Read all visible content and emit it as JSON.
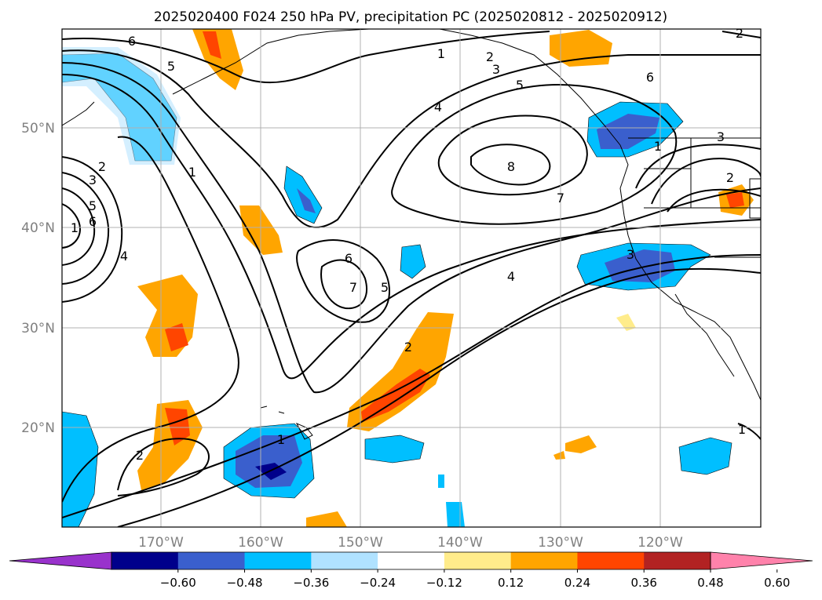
{
  "title": "2025020400 F024 250 hPa PV, precipitation PC (2025020812 - 2025020912)",
  "map": {
    "lon_labels": [
      "170°W",
      "160°W",
      "150°W",
      "140°W",
      "130°W",
      "120°W"
    ],
    "lat_labels": [
      "50°N",
      "40°N",
      "30°N",
      "20°N"
    ],
    "contour_labels": [
      "6",
      "5",
      "1",
      "2",
      "3",
      "5",
      "6",
      "4",
      "1",
      "2",
      "3",
      "5",
      "6",
      "4",
      "8",
      "7",
      "1",
      "2",
      "3",
      "2",
      "1",
      "3",
      "6",
      "7",
      "5",
      "4",
      "2",
      "1",
      "2",
      "1"
    ]
  },
  "colorbar": {
    "colors": [
      "#9932cc",
      "#00008b",
      "#3a5fcd",
      "#00bfff",
      "#b0e2ff",
      "#ffffff",
      "#ffec8b",
      "#ffa500",
      "#ff4500",
      "#b22222",
      "#ff82ab"
    ],
    "ticks": [
      "−0.60",
      "−0.48",
      "−0.36",
      "−0.24",
      "−0.12",
      "0.12",
      "0.24",
      "0.36",
      "0.48",
      "0.60"
    ]
  }
}
